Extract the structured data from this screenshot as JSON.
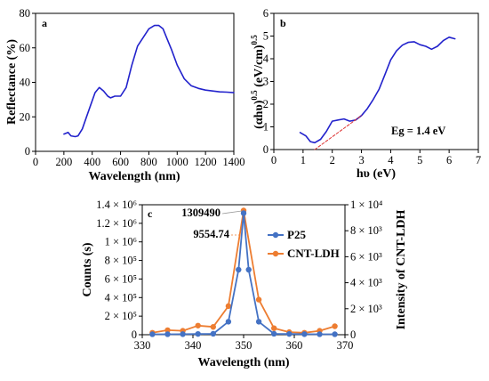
{
  "figure": {
    "colors": {
      "blue_curve": "#2222cc",
      "p25": "#4472c4",
      "cnt_ldh": "#ed7d31",
      "tangent": "#dd3333"
    }
  },
  "chart_data": [
    {
      "panel_label": "a",
      "type": "line",
      "xlabel": "Wavelength (nm)",
      "ylabel": "Reflectance (%)",
      "xlim": [
        0,
        1400
      ],
      "ylim": [
        0,
        80
      ],
      "xticks": [
        0,
        200,
        400,
        600,
        800,
        1000,
        1200,
        1400
      ],
      "yticks": [
        0,
        20,
        40,
        60,
        80
      ],
      "grid": false,
      "series": [
        {
          "color": "#2222cc",
          "x": [
            200,
            230,
            250,
            280,
            300,
            330,
            360,
            390,
            420,
            450,
            480,
            510,
            530,
            560,
            600,
            640,
            680,
            720,
            760,
            800,
            840,
            870,
            900,
            930,
            960,
            1000,
            1050,
            1100,
            1150,
            1200,
            1250,
            1300,
            1350,
            1400
          ],
          "y": [
            10,
            11,
            9,
            8.5,
            9,
            13,
            20,
            27,
            34,
            37,
            35,
            32,
            31,
            32,
            32,
            37,
            50,
            61,
            66,
            71,
            73,
            73,
            71,
            65,
            59,
            50,
            42,
            38,
            36.5,
            35.5,
            35,
            34.5,
            34.3,
            34
          ]
        }
      ]
    },
    {
      "panel_label": "b",
      "type": "line",
      "xlabel": "hυ (eV)",
      "ylabel": "(αhυ)0.5 (eV/cm)0.5",
      "xlim": [
        0,
        7
      ],
      "ylim": [
        0,
        6
      ],
      "xticks": [
        0,
        1,
        2,
        3,
        4,
        5,
        6,
        7
      ],
      "yticks": [
        0,
        1,
        2,
        3,
        4,
        5,
        6
      ],
      "grid": false,
      "annotation": "Eg = 1.4 eV",
      "series": [
        {
          "color": "#2222cc",
          "x": [
            0.9,
            1.1,
            1.25,
            1.4,
            1.6,
            1.8,
            2.0,
            2.2,
            2.4,
            2.6,
            2.8,
            3.0,
            3.2,
            3.4,
            3.6,
            3.8,
            4.0,
            4.2,
            4.4,
            4.6,
            4.8,
            5.0,
            5.2,
            5.4,
            5.6,
            5.8,
            6.0,
            6.2
          ],
          "y": [
            0.75,
            0.6,
            0.35,
            0.3,
            0.45,
            0.8,
            1.25,
            1.3,
            1.35,
            1.25,
            1.3,
            1.5,
            1.8,
            2.2,
            2.65,
            3.3,
            3.95,
            4.35,
            4.6,
            4.72,
            4.75,
            4.62,
            4.55,
            4.42,
            4.55,
            4.8,
            4.95,
            4.88
          ]
        },
        {
          "role": "tangent",
          "color": "#dd3333",
          "x": [
            1.4,
            3.0
          ],
          "y": [
            0,
            1.5
          ]
        }
      ]
    },
    {
      "panel_label": "c",
      "type": "line",
      "xlabel": "Wavelength (nm)",
      "ylabel": "Counts (s)",
      "ylabel_right": "Intensity of CNT-LDH",
      "xlim": [
        330,
        370
      ],
      "ylim": [
        0,
        1400000
      ],
      "ylim_right": [
        0,
        10000
      ],
      "xticks": [
        330,
        340,
        350,
        360,
        370
      ],
      "yticks_left_labels": [
        "0",
        "2 × 10⁵",
        "4 × 10⁵",
        "6 × 10⁵",
        "8 × 10⁵",
        "1 × 10⁶",
        "1.2 × 10⁶",
        "1.4 × 10⁶"
      ],
      "yticks_right_labels": [
        "0",
        "2 × 10³",
        "4 × 10³",
        "6 × 10³",
        "8 × 10³",
        "1 × 10⁴"
      ],
      "legend_position": "right",
      "grid": false,
      "annotations": [
        "1309490",
        "9554.74"
      ],
      "series": [
        {
          "name": "P25",
          "axis": "left",
          "color": "#4472c4",
          "x": [
            332,
            335,
            338,
            341,
            344,
            347,
            349,
            350,
            351,
            353,
            356,
            359,
            362,
            365,
            368
          ],
          "y": [
            5000,
            5000,
            6000,
            8000,
            10000,
            140000,
            700000,
            1309490,
            700000,
            140000,
            10000,
            8000,
            6000,
            5000,
            5000
          ]
        },
        {
          "name": "CNT-LDH",
          "axis": "right",
          "color": "#ed7d31",
          "x": [
            332,
            335,
            338,
            341,
            344,
            347,
            350,
            353,
            356,
            359,
            362,
            365,
            368
          ],
          "y": [
            150,
            350,
            300,
            700,
            600,
            2200,
            9554.74,
            2700,
            500,
            200,
            150,
            300,
            650
          ]
        }
      ]
    }
  ]
}
